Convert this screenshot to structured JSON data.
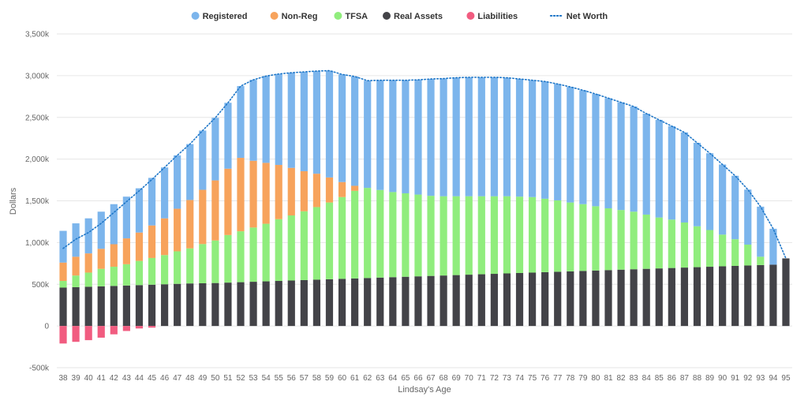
{
  "chart_data": {
    "type": "bar",
    "stacked": true,
    "title": "",
    "xlabel": "Lindsay's Age",
    "ylabel": "Dollars",
    "ylim": [
      -500,
      3500
    ],
    "yunit": "k",
    "yticks": [
      "-500k",
      "0",
      "500k",
      "1,000k",
      "1,500k",
      "2,000k",
      "2,500k",
      "3,000k",
      "3,500k"
    ],
    "ytick_values": [
      -500,
      0,
      500,
      1000,
      1500,
      2000,
      2500,
      3000,
      3500
    ],
    "grid": true,
    "legend_position": "top",
    "categories": [
      "38",
      "39",
      "40",
      "41",
      "42",
      "43",
      "44",
      "45",
      "46",
      "47",
      "48",
      "49",
      "50",
      "51",
      "52",
      "53",
      "54",
      "55",
      "56",
      "57",
      "58",
      "59",
      "60",
      "61",
      "62",
      "63",
      "64",
      "65",
      "66",
      "67",
      "68",
      "69",
      "70",
      "71",
      "72",
      "73",
      "74",
      "75",
      "76",
      "77",
      "78",
      "79",
      "80",
      "81",
      "82",
      "83",
      "84",
      "85",
      "86",
      "87",
      "88",
      "89",
      "90",
      "91",
      "92",
      "93",
      "94",
      "95"
    ],
    "series": [
      {
        "name": "Real Assets",
        "color": "#434348",
        "values": [
          460,
          465,
          470,
          475,
          480,
          485,
          490,
          495,
          500,
          505,
          510,
          512,
          515,
          520,
          525,
          530,
          535,
          540,
          545,
          550,
          555,
          560,
          565,
          570,
          575,
          580,
          585,
          590,
          595,
          600,
          605,
          610,
          615,
          620,
          625,
          630,
          635,
          640,
          645,
          650,
          655,
          660,
          665,
          670,
          675,
          680,
          685,
          690,
          695,
          700,
          705,
          710,
          715,
          720,
          725,
          730,
          735,
          810
        ]
      },
      {
        "name": "TFSA",
        "color": "#90ed7d",
        "values": [
          80,
          140,
          170,
          210,
          230,
          255,
          290,
          320,
          350,
          390,
          420,
          470,
          510,
          570,
          610,
          650,
          690,
          740,
          780,
          825,
          870,
          920,
          980,
          1050,
          1080,
          1050,
          1020,
          1000,
          980,
          960,
          950,
          945,
          940,
          935,
          930,
          925,
          915,
          905,
          880,
          855,
          825,
          800,
          770,
          740,
          715,
          690,
          650,
          610,
          580,
          540,
          490,
          440,
          380,
          320,
          250,
          100,
          0,
          0
        ]
      },
      {
        "name": "Non-Reg",
        "color": "#f7a35c",
        "values": [
          220,
          225,
          230,
          240,
          270,
          310,
          340,
          390,
          440,
          510,
          580,
          650,
          720,
          795,
          880,
          800,
          730,
          650,
          570,
          480,
          400,
          300,
          180,
          60,
          0,
          0,
          0,
          0,
          0,
          0,
          0,
          0,
          0,
          0,
          0,
          0,
          0,
          0,
          0,
          0,
          0,
          0,
          0,
          0,
          0,
          0,
          0,
          0,
          0,
          0,
          0,
          0,
          0,
          0,
          0,
          0,
          0,
          0
        ]
      },
      {
        "name": "Registered",
        "color": "#7cb5ec",
        "values": [
          380,
          400,
          420,
          445,
          480,
          500,
          530,
          570,
          610,
          640,
          670,
          710,
          750,
          790,
          860,
          970,
          1040,
          1090,
          1140,
          1190,
          1230,
          1280,
          1290,
          1310,
          1285,
          1315,
          1340,
          1355,
          1375,
          1400,
          1410,
          1420,
          1425,
          1425,
          1425,
          1420,
          1410,
          1400,
          1405,
          1395,
          1385,
          1365,
          1345,
          1320,
          1290,
          1260,
          1210,
          1170,
          1120,
          1080,
          1000,
          920,
          840,
          760,
          660,
          600,
          430,
          0
        ]
      },
      {
        "name": "Liabilities",
        "color": "#f15c80",
        "values": [
          -210,
          -190,
          -170,
          -140,
          -100,
          -60,
          -30,
          -20,
          0,
          0,
          0,
          0,
          0,
          0,
          0,
          0,
          0,
          0,
          0,
          0,
          0,
          0,
          0,
          0,
          0,
          0,
          0,
          0,
          0,
          0,
          0,
          0,
          0,
          0,
          0,
          0,
          0,
          0,
          0,
          0,
          0,
          0,
          0,
          0,
          0,
          0,
          0,
          0,
          0,
          0,
          0,
          0,
          0,
          0,
          0,
          0,
          0,
          0
        ]
      }
    ],
    "net_worth": {
      "name": "Net Worth",
      "color": "#1f77c8",
      "values": [
        930,
        1040,
        1120,
        1230,
        1360,
        1490,
        1620,
        1755,
        1900,
        2045,
        2180,
        2342,
        2495,
        2675,
        2875,
        2950,
        2995,
        3020,
        3035,
        3045,
        3055,
        3060,
        3015,
        2990,
        2940,
        2945,
        2945,
        2945,
        2950,
        2960,
        2965,
        2975,
        2980,
        2980,
        2980,
        2975,
        2960,
        2945,
        2930,
        2900,
        2865,
        2825,
        2780,
        2730,
        2680,
        2630,
        2545,
        2470,
        2395,
        2320,
        2195,
        2070,
        1935,
        1800,
        1635,
        1430,
        1165,
        810
      ]
    },
    "legend": [
      {
        "name": "Registered",
        "color": "#7cb5ec",
        "symbol": "dot"
      },
      {
        "name": "Non-Reg",
        "color": "#f7a35c",
        "symbol": "dot"
      },
      {
        "name": "TFSA",
        "color": "#90ed7d",
        "symbol": "dot"
      },
      {
        "name": "Real Assets",
        "color": "#434348",
        "symbol": "dot"
      },
      {
        "name": "Liabilities",
        "color": "#f15c80",
        "symbol": "dot"
      },
      {
        "name": "Net Worth",
        "color": "#1f77c8",
        "symbol": "dotted-line"
      }
    ]
  }
}
